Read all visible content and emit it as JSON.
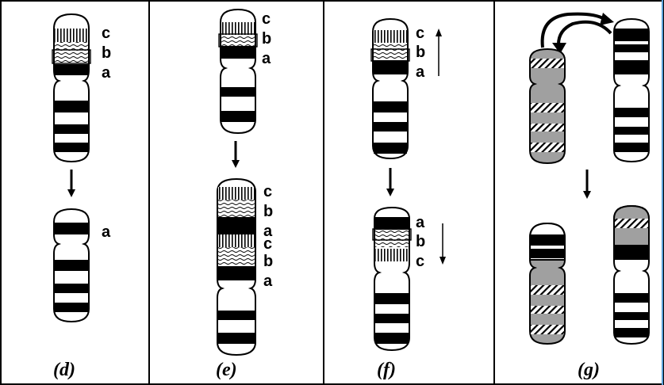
{
  "panels": [
    {
      "caption": "(d)",
      "top_labels": [
        "c",
        "b",
        "a"
      ],
      "bottom_labels": [
        "a"
      ]
    },
    {
      "caption": "(e)",
      "top_labels": [
        "c",
        "b",
        "a"
      ],
      "bottom_labels": [
        "c",
        "b",
        "a",
        "c",
        "b",
        "a"
      ]
    },
    {
      "caption": "(f)",
      "top_labels": [
        "c",
        "b",
        "a"
      ],
      "bottom_labels": [
        "a",
        "b",
        "c"
      ]
    },
    {
      "caption": "(g)"
    }
  ],
  "colors": {
    "grey_chromosome": "#a0a0a0",
    "line": "#000000",
    "frame_accent": "#5aa0d8"
  }
}
